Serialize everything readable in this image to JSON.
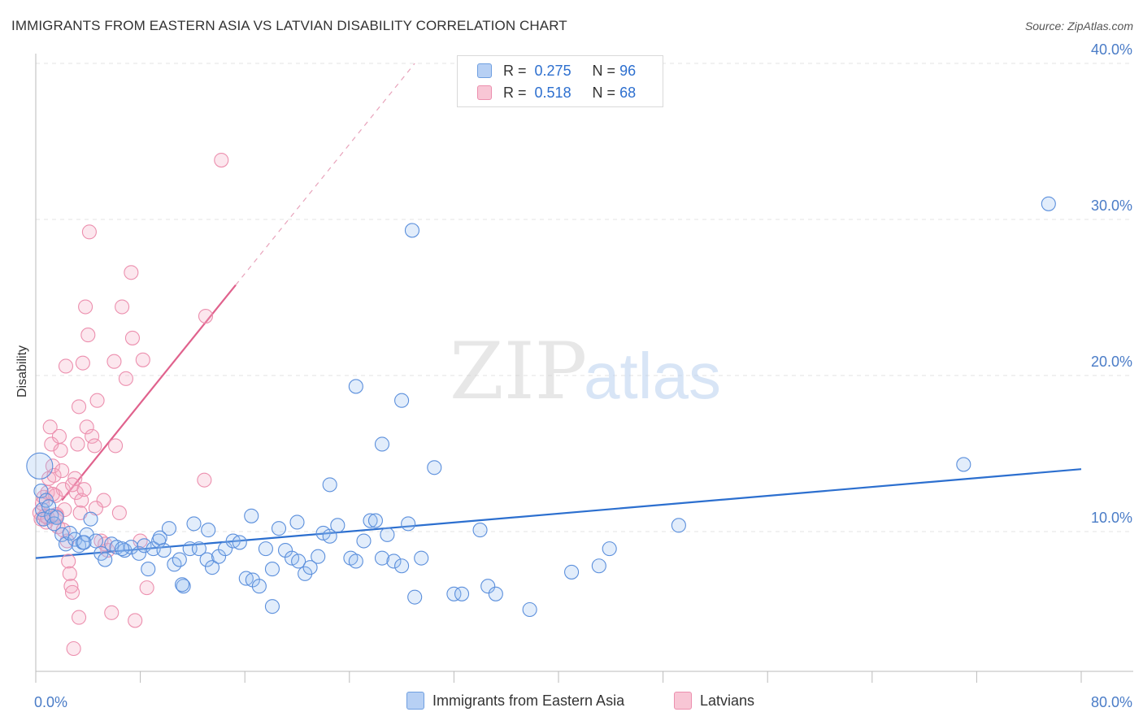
{
  "title": "IMMIGRANTS FROM EASTERN ASIA VS LATVIAN DISABILITY CORRELATION CHART",
  "source": "Source: ZipAtlas.com",
  "watermark": {
    "zip": "ZIP",
    "atlas": "atlas"
  },
  "colors": {
    "blue": "#4a86e0",
    "blue_fill": "#a9c7f2",
    "pink": "#e86f97",
    "pink_fill": "#f5b8cb",
    "blue_line": "#2c6fcf",
    "pink_line": "#e0628d"
  },
  "legend_top": [
    {
      "r_label": "R =",
      "r_value": "0.275",
      "n_label": "N =",
      "n_value": "96"
    },
    {
      "r_label": "R =",
      "r_value": "0.518",
      "n_label": "N =",
      "n_value": "68"
    }
  ],
  "legend_bottom": [
    "Immigrants from Eastern Asia",
    "Latvians"
  ],
  "chart_data": {
    "type": "scatter",
    "title": "IMMIGRANTS FROM EASTERN ASIA VS LATVIAN DISABILITY CORRELATION CHART",
    "xlabel": "",
    "ylabel": "Disability",
    "xlim": [
      0,
      80
    ],
    "ylim": [
      0,
      42
    ],
    "x_tick_labels": [
      "0.0%",
      "80.0%"
    ],
    "y_tick_labels": [
      "10.0%",
      "20.0%",
      "30.0%",
      "40.0%"
    ],
    "y_ticks": [
      10,
      20,
      30,
      40
    ],
    "grid": "horizontal dashed",
    "legend_position": "top-center",
    "series": [
      {
        "name": "Immigrants from Eastern Asia",
        "R": 0.275,
        "N": 96,
        "trend": {
          "x": [
            0,
            80
          ],
          "y": [
            8.3,
            14.0
          ]
        },
        "points": [
          [
            0.3,
            14.2
          ],
          [
            0.4,
            12.6
          ],
          [
            0.5,
            11.4
          ],
          [
            0.6,
            10.8
          ],
          [
            0.8,
            12.0
          ],
          [
            1.0,
            11.6
          ],
          [
            1.2,
            11.0
          ],
          [
            1.4,
            10.5
          ],
          [
            1.6,
            10.9
          ],
          [
            2.0,
            9.8
          ],
          [
            2.3,
            9.2
          ],
          [
            2.6,
            9.9
          ],
          [
            3.0,
            9.5
          ],
          [
            3.3,
            9.1
          ],
          [
            3.6,
            9.3
          ],
          [
            3.9,
            9.8
          ],
          [
            4.2,
            10.8
          ],
          [
            4.6,
            9.4
          ],
          [
            5.0,
            8.6
          ],
          [
            5.3,
            8.2
          ],
          [
            5.8,
            9.2
          ],
          [
            6.2,
            9.0
          ],
          [
            6.8,
            8.8
          ],
          [
            7.3,
            9.0
          ],
          [
            7.9,
            8.6
          ],
          [
            8.3,
            9.1
          ],
          [
            8.6,
            7.6
          ],
          [
            9.0,
            8.9
          ],
          [
            9.4,
            9.4
          ],
          [
            9.8,
            8.8
          ],
          [
            10.2,
            10.2
          ],
          [
            10.6,
            7.9
          ],
          [
            11.0,
            8.2
          ],
          [
            11.3,
            6.5
          ],
          [
            11.8,
            8.9
          ],
          [
            12.1,
            10.5
          ],
          [
            12.5,
            8.9
          ],
          [
            13.1,
            8.2
          ],
          [
            13.5,
            7.7
          ],
          [
            14.0,
            8.4
          ],
          [
            14.5,
            8.9
          ],
          [
            15.1,
            9.4
          ],
          [
            15.6,
            9.3
          ],
          [
            16.1,
            7.0
          ],
          [
            16.6,
            6.9
          ],
          [
            17.1,
            6.5
          ],
          [
            17.6,
            8.9
          ],
          [
            18.1,
            7.6
          ],
          [
            18.6,
            10.2
          ],
          [
            19.1,
            8.8
          ],
          [
            19.6,
            8.3
          ],
          [
            20.1,
            8.1
          ],
          [
            20.6,
            7.3
          ],
          [
            21.0,
            7.7
          ],
          [
            21.6,
            8.4
          ],
          [
            22.0,
            9.9
          ],
          [
            22.5,
            9.7
          ],
          [
            23.1,
            10.4
          ],
          [
            24.1,
            8.3
          ],
          [
            24.5,
            8.1
          ],
          [
            25.1,
            9.4
          ],
          [
            25.6,
            10.7
          ],
          [
            26.0,
            10.7
          ],
          [
            26.5,
            8.3
          ],
          [
            26.9,
            9.8
          ],
          [
            27.4,
            8.1
          ],
          [
            28.0,
            7.8
          ],
          [
            28.5,
            10.5
          ],
          [
            28.8,
            29.3
          ],
          [
            29.0,
            5.8
          ],
          [
            29.5,
            8.3
          ],
          [
            32.0,
            6.0
          ],
          [
            32.6,
            6.0
          ],
          [
            34.0,
            10.1
          ],
          [
            34.6,
            6.5
          ],
          [
            35.2,
            6.0
          ],
          [
            37.8,
            5.0
          ],
          [
            41.0,
            7.4
          ],
          [
            43.1,
            7.8
          ],
          [
            43.9,
            8.9
          ],
          [
            49.2,
            10.4
          ],
          [
            71.0,
            14.3
          ],
          [
            77.5,
            31.0
          ],
          [
            18.1,
            5.2
          ],
          [
            11.2,
            6.6
          ],
          [
            24.5,
            19.3
          ],
          [
            26.5,
            15.6
          ],
          [
            28.0,
            18.4
          ],
          [
            30.5,
            14.1
          ],
          [
            22.5,
            13.0
          ],
          [
            13.2,
            10.1
          ],
          [
            6.6,
            8.9
          ],
          [
            16.5,
            11.0
          ],
          [
            20.0,
            10.6
          ],
          [
            3.7,
            9.3
          ],
          [
            9.5,
            9.6
          ]
        ]
      },
      {
        "name": "Latvians",
        "R": 0.518,
        "N": 68,
        "trend": {
          "x": [
            2.0,
            15.3
          ],
          "y": [
            12.0,
            25.8
          ],
          "dashed_extension_to": [
            29.0,
            40.0
          ]
        },
        "points": [
          [
            0.3,
            11.2
          ],
          [
            0.4,
            10.8
          ],
          [
            0.5,
            11.8
          ],
          [
            0.6,
            12.2
          ],
          [
            0.7,
            11.0
          ],
          [
            0.8,
            10.6
          ],
          [
            0.9,
            12.5
          ],
          [
            1.0,
            13.4
          ],
          [
            1.1,
            16.7
          ],
          [
            1.2,
            15.6
          ],
          [
            1.3,
            14.2
          ],
          [
            1.4,
            13.6
          ],
          [
            1.5,
            12.3
          ],
          [
            1.6,
            11.1
          ],
          [
            1.7,
            10.3
          ],
          [
            1.8,
            16.1
          ],
          [
            1.9,
            15.2
          ],
          [
            2.0,
            13.9
          ],
          [
            2.1,
            12.7
          ],
          [
            2.2,
            11.4
          ],
          [
            2.3,
            20.6
          ],
          [
            2.4,
            9.4
          ],
          [
            2.5,
            8.1
          ],
          [
            2.6,
            7.3
          ],
          [
            2.7,
            6.5
          ],
          [
            2.8,
            6.1
          ],
          [
            2.9,
            2.5
          ],
          [
            3.0,
            13.4
          ],
          [
            3.1,
            12.5
          ],
          [
            3.2,
            15.6
          ],
          [
            3.3,
            18.0
          ],
          [
            3.4,
            11.2
          ],
          [
            3.5,
            12.0
          ],
          [
            3.6,
            20.8
          ],
          [
            3.8,
            24.4
          ],
          [
            3.9,
            16.7
          ],
          [
            4.0,
            22.6
          ],
          [
            4.1,
            29.2
          ],
          [
            4.3,
            16.1
          ],
          [
            4.5,
            15.5
          ],
          [
            4.7,
            18.4
          ],
          [
            5.0,
            9.4
          ],
          [
            5.2,
            12.0
          ],
          [
            5.5,
            8.8
          ],
          [
            5.8,
            4.8
          ],
          [
            6.0,
            20.9
          ],
          [
            6.1,
            15.5
          ],
          [
            6.4,
            11.2
          ],
          [
            6.6,
            24.4
          ],
          [
            6.9,
            19.8
          ],
          [
            7.3,
            26.6
          ],
          [
            7.4,
            22.4
          ],
          [
            7.6,
            4.3
          ],
          [
            8.2,
            21.0
          ],
          [
            8.0,
            9.4
          ],
          [
            8.5,
            6.4
          ],
          [
            13.0,
            23.8
          ],
          [
            14.2,
            33.8
          ],
          [
            12.9,
            13.3
          ],
          [
            2.1,
            10.1
          ],
          [
            1.3,
            12.4
          ],
          [
            2.8,
            13.0
          ],
          [
            3.7,
            12.7
          ],
          [
            4.6,
            11.5
          ],
          [
            0.9,
            10.9
          ],
          [
            1.6,
            11.0
          ],
          [
            5.3,
            9.2
          ],
          [
            3.3,
            4.5
          ]
        ]
      }
    ]
  }
}
